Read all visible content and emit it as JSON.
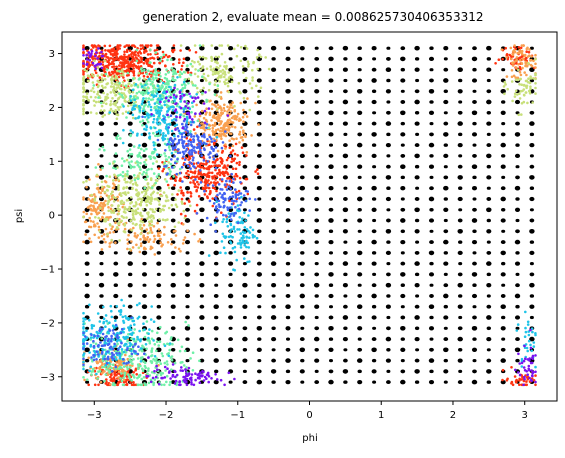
{
  "chart_data": {
    "type": "scatter",
    "title": "generation 2, evaluate mean = 0.008625730406353312",
    "xlabel": "phi",
    "ylabel": "psi",
    "xlim": [
      -3.45,
      3.45
    ],
    "ylim": [
      -3.45,
      3.4
    ],
    "x_ticks": [
      -3,
      -2,
      -1,
      0,
      1,
      2,
      3
    ],
    "x_tick_labels": [
      "−3",
      "−2",
      "−1",
      "0",
      "1",
      "2",
      "3"
    ],
    "y_ticks": [
      -3,
      -2,
      -1,
      0,
      1,
      2,
      3
    ],
    "y_tick_labels": [
      "−3",
      "−2",
      "−1",
      "0",
      "1",
      "2",
      "3"
    ],
    "grid": false,
    "grid_points": {
      "name": "sampled grid",
      "color": "#000000",
      "x_start": -3.1,
      "x_step": 0.2,
      "x_count": 32,
      "y_start": -3.1,
      "y_step": 0.2,
      "y_count": 32
    },
    "clusters": [
      {
        "name": "c1",
        "color": "#ff3311",
        "cx": -2.6,
        "cy": 2.85,
        "sx": 0.35,
        "sy": 0.18,
        "n": 420
      },
      {
        "name": "c2",
        "color": "#ff3311",
        "cx": -1.45,
        "cy": 0.75,
        "sx": 0.28,
        "sy": 0.3,
        "n": 300
      },
      {
        "name": "c3",
        "color": "#ff3311",
        "cx": -2.65,
        "cy": -3.0,
        "sx": 0.18,
        "sy": 0.12,
        "n": 120
      },
      {
        "name": "c4",
        "color": "#ff3311",
        "cx": 2.9,
        "cy": 2.95,
        "sx": 0.12,
        "sy": 0.12,
        "n": 50
      },
      {
        "name": "c5",
        "color": "#ff3311",
        "cx": 2.95,
        "cy": -3.05,
        "sx": 0.12,
        "sy": 0.08,
        "n": 40
      },
      {
        "name": "c6",
        "color": "#f9a050",
        "cx": -1.2,
        "cy": 1.7,
        "sx": 0.18,
        "sy": 0.22,
        "n": 220
      },
      {
        "name": "c7",
        "color": "#f9a050",
        "cx": -2.9,
        "cy": 0.1,
        "sx": 0.15,
        "sy": 0.3,
        "n": 150
      },
      {
        "name": "c8",
        "color": "#f9a050",
        "cx": -2.75,
        "cy": -2.8,
        "sx": 0.18,
        "sy": 0.15,
        "n": 110
      },
      {
        "name": "c9",
        "color": "#f9a050",
        "cx": 2.95,
        "cy": 2.85,
        "sx": 0.12,
        "sy": 0.15,
        "n": 70
      },
      {
        "name": "c10",
        "color": "#f9a050",
        "cx": -2.2,
        "cy": -0.4,
        "sx": 0.3,
        "sy": 0.15,
        "n": 90
      },
      {
        "name": "c11",
        "color": "#c8e07a",
        "cx": -2.4,
        "cy": 0.25,
        "sx": 0.3,
        "sy": 0.3,
        "n": 300
      },
      {
        "name": "c12",
        "color": "#c8e07a",
        "cx": -2.8,
        "cy": 2.3,
        "sx": 0.3,
        "sy": 0.25,
        "n": 220
      },
      {
        "name": "c13",
        "color": "#c8e07a",
        "cx": -1.2,
        "cy": 2.65,
        "sx": 0.25,
        "sy": 0.25,
        "n": 150
      },
      {
        "name": "c14",
        "color": "#c8e07a",
        "cx": 3.0,
        "cy": 2.35,
        "sx": 0.12,
        "sy": 0.2,
        "n": 60
      },
      {
        "name": "c15",
        "color": "#6ff0a8",
        "cx": -2.1,
        "cy": 2.3,
        "sx": 0.3,
        "sy": 0.3,
        "n": 260
      },
      {
        "name": "c16",
        "color": "#6ff0a8",
        "cx": -2.4,
        "cy": -2.7,
        "sx": 0.35,
        "sy": 0.3,
        "n": 260
      },
      {
        "name": "c17",
        "color": "#6ff0a8",
        "cx": -2.3,
        "cy": 1.05,
        "sx": 0.25,
        "sy": 0.25,
        "n": 120
      },
      {
        "name": "c18",
        "color": "#1fc4e8",
        "cx": -2.05,
        "cy": 1.85,
        "sx": 0.25,
        "sy": 0.3,
        "n": 200
      },
      {
        "name": "c19",
        "color": "#1fc4e8",
        "cx": -2.8,
        "cy": -2.3,
        "sx": 0.3,
        "sy": 0.3,
        "n": 220
      },
      {
        "name": "c20",
        "color": "#1fc4e8",
        "cx": -1.0,
        "cy": -0.3,
        "sx": 0.12,
        "sy": 0.3,
        "n": 100
      },
      {
        "name": "c21",
        "color": "#1fc4e8",
        "cx": 3.05,
        "cy": -2.3,
        "sx": 0.08,
        "sy": 0.3,
        "n": 30
      },
      {
        "name": "c22",
        "color": "#4262f2",
        "cx": -1.65,
        "cy": 1.3,
        "sx": 0.2,
        "sy": 0.25,
        "n": 170
      },
      {
        "name": "c23",
        "color": "#4262f2",
        "cx": -1.15,
        "cy": 0.3,
        "sx": 0.15,
        "sy": 0.2,
        "n": 90
      },
      {
        "name": "c24",
        "color": "#4262f2",
        "cx": -2.8,
        "cy": -2.45,
        "sx": 0.2,
        "sy": 0.2,
        "n": 90
      },
      {
        "name": "c25",
        "color": "#7a12f0",
        "cx": -1.75,
        "cy": -3.0,
        "sx": 0.25,
        "sy": 0.1,
        "n": 90
      },
      {
        "name": "c26",
        "color": "#7a12f0",
        "cx": -1.8,
        "cy": 2.05,
        "sx": 0.2,
        "sy": 0.2,
        "n": 50
      },
      {
        "name": "c27",
        "color": "#7a12f0",
        "cx": 3.05,
        "cy": -2.85,
        "sx": 0.08,
        "sy": 0.2,
        "n": 40
      },
      {
        "name": "c28",
        "color": "#7a12f0",
        "cx": -3.05,
        "cy": 2.9,
        "sx": 0.1,
        "sy": 0.1,
        "n": 30
      }
    ]
  }
}
